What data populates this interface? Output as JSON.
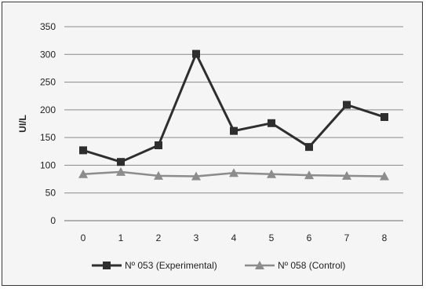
{
  "chart_data": {
    "type": "line",
    "xlabel": "",
    "ylabel": "UI/L",
    "categories": [
      "0",
      "1",
      "2",
      "3",
      "4",
      "5",
      "6",
      "7",
      "8"
    ],
    "ylim": [
      0,
      350
    ],
    "yticks": [
      0,
      50,
      100,
      150,
      200,
      250,
      300,
      350
    ],
    "grid": "horizontal",
    "legend_position": "bottom",
    "series": [
      {
        "name": "Nº 053 (Experimental)",
        "marker": "square",
        "color": "#2e2e2e",
        "values": [
          127,
          106,
          136,
          301,
          162,
          176,
          133,
          209,
          187
        ]
      },
      {
        "name": "Nº 058 (Control)",
        "marker": "triangle",
        "color": "#8c8c8c",
        "values": [
          84,
          88,
          81,
          80,
          86,
          84,
          82,
          81,
          80
        ]
      }
    ]
  }
}
